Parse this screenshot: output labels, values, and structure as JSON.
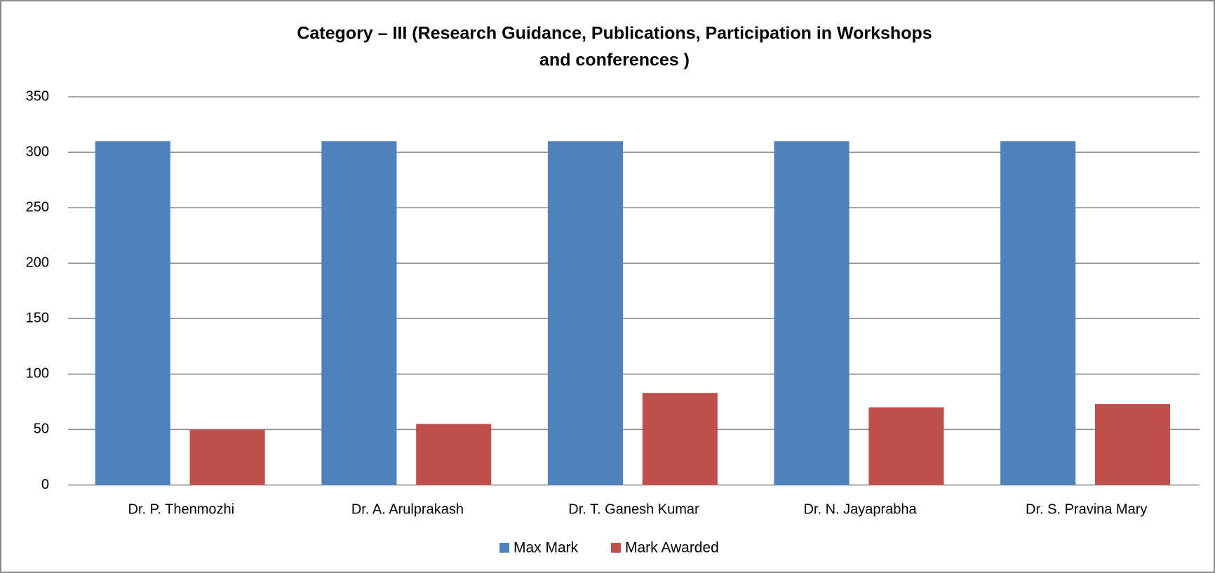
{
  "chart_data": {
    "type": "bar",
    "title": [
      "Category – III (Research  Guidance, Publications, Participation in Workshops",
      "and conferences )"
    ],
    "categories": [
      "Dr. P. Thenmozhi",
      "Dr. A. Arulprakash",
      "Dr. T. Ganesh Kumar",
      "Dr. N. Jayaprabha",
      "Dr. S. Pravina Mary"
    ],
    "series": [
      {
        "name": "Max Mark",
        "color": "#4f81bd",
        "values": [
          310,
          310,
          310,
          310,
          310
        ]
      },
      {
        "name": "Mark Awarded",
        "color": "#c0504d",
        "values": [
          50,
          55,
          83,
          70,
          73
        ]
      }
    ],
    "ylim": [
      0,
      350
    ],
    "yticks": [
      0,
      50,
      100,
      150,
      200,
      250,
      300,
      350
    ],
    "grid": true,
    "legend": "bottom"
  }
}
